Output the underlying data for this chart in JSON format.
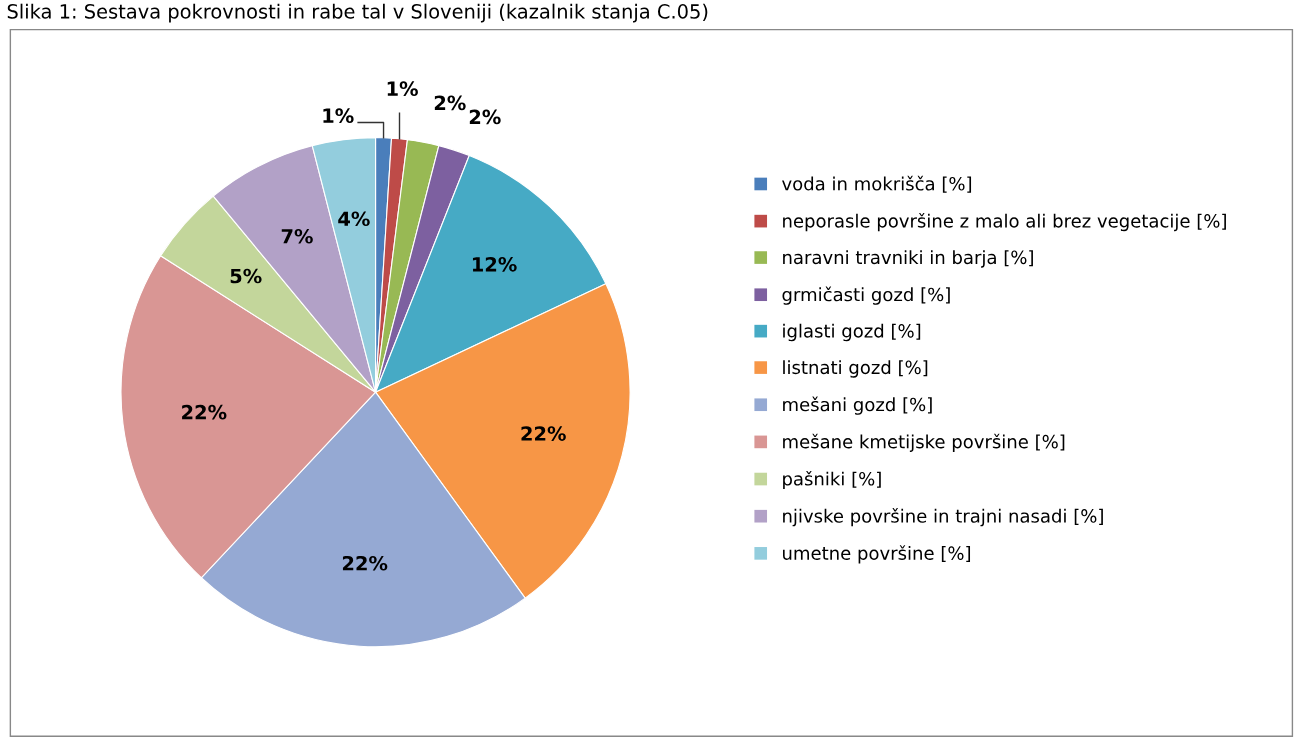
{
  "chart_data": {
    "type": "pie",
    "title": "Slika 1: Sestava pokrovnosti in rabe tal v Sloveniji (kazalnik stanja C.05)",
    "categories": [
      "voda in mokrišča [%]",
      "neporasle površine z malo ali brez vegetacije [%]",
      "naravni travniki in barja [%]",
      "grmičasti gozd [%]",
      "iglasti gozd [%]",
      "listnati gozd [%]",
      "mešani gozd [%]",
      "mešane kmetijske površine [%]",
      "pašniki [%]",
      "njivske površine in trajni nasadi [%]",
      "umetne površine [%]"
    ],
    "values": [
      1,
      1,
      2,
      2,
      12,
      22,
      22,
      22,
      5,
      7,
      4
    ],
    "value_labels": [
      "1%",
      "1%",
      "2%",
      "2%",
      "12%",
      "22%",
      "22%",
      "22%",
      "5%",
      "7%",
      "4%"
    ],
    "colors": [
      "#4a7ebb",
      "#be4b48",
      "#98b954",
      "#7d60a0",
      "#46aac5",
      "#f79646",
      "#95a9d3",
      "#d99694",
      "#c3d69b",
      "#b2a1c7",
      "#93cddd"
    ],
    "legend": "right"
  }
}
